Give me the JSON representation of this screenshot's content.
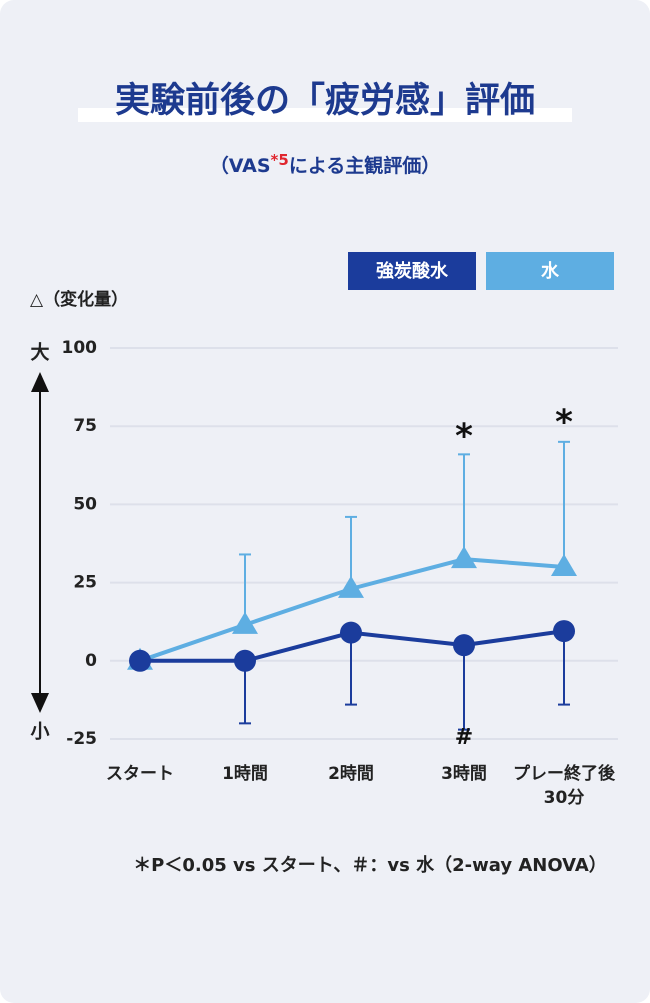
{
  "chart_data": {
    "type": "line",
    "title": "実験前後の「疲労感」評価",
    "subtitle": [
      "（VAS",
      "*5",
      "による主観評価）"
    ],
    "y_label": "△（変化量）",
    "y_end_labels": [
      "大",
      "小"
    ],
    "categories": [
      "スタート",
      "1時間",
      "2時間",
      "3時間",
      "プレー終了後\n30分"
    ],
    "series": [
      {
        "name": "強炭酸水",
        "color": "#1b3c9c",
        "marker": "circle",
        "values": [
          0,
          0,
          9,
          5,
          9.5
        ],
        "errors": [
          null,
          20,
          23,
          27,
          23.5
        ],
        "error_side": "lower"
      },
      {
        "name": "水",
        "color": "#5eaee2",
        "marker": "triangle",
        "values": [
          0,
          11.5,
          23,
          32.5,
          30
        ],
        "errors": [
          null,
          22.5,
          23,
          33.5,
          40
        ],
        "error_side": "upper"
      }
    ],
    "ylim": [
      -25,
      100
    ],
    "yticks": [
      -25,
      0,
      25,
      50,
      75,
      100
    ],
    "grid": true,
    "annotations": [
      "*",
      "*",
      "#"
    ],
    "footnote": "＊P＜0.05 vs スタート、＃：vs 水（2-way ANOVA）"
  }
}
